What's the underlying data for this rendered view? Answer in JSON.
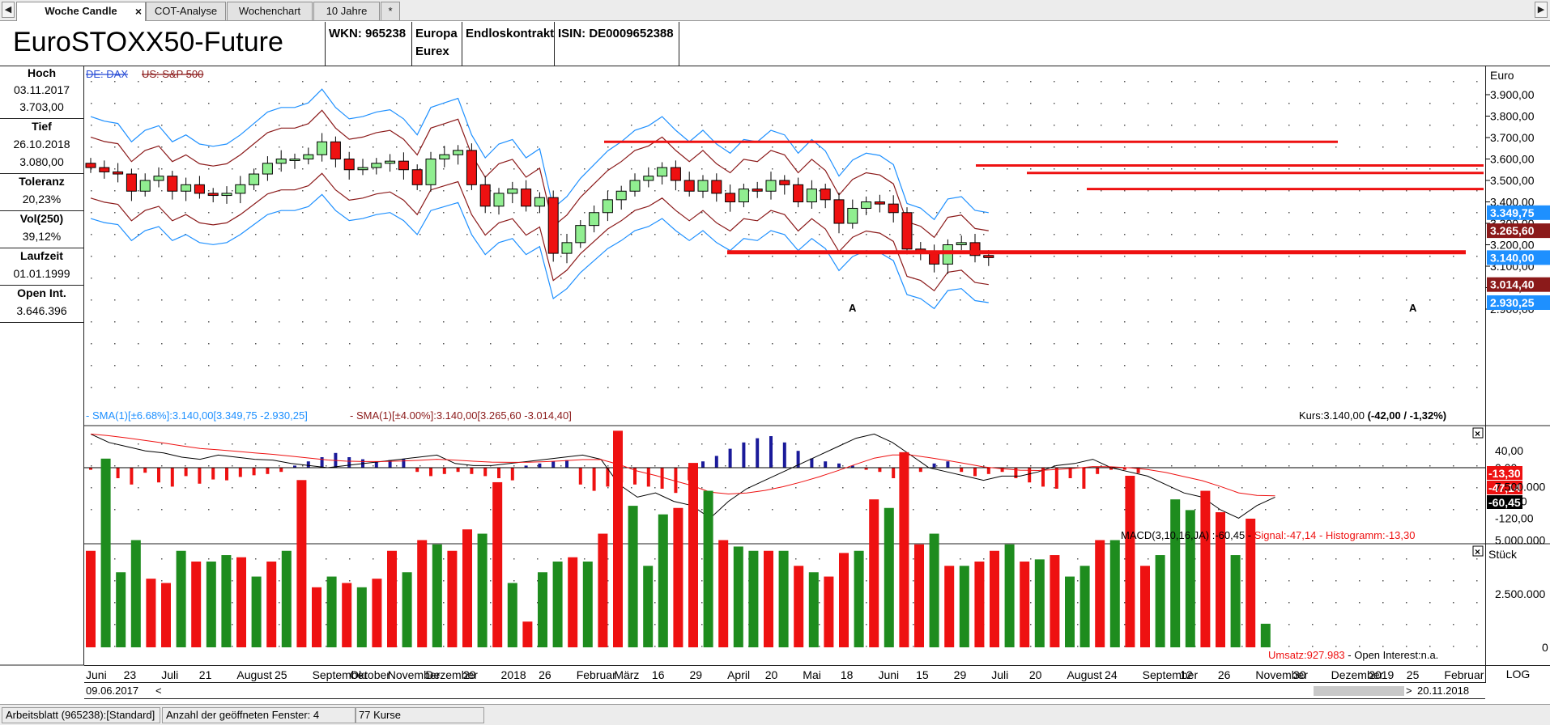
{
  "tabs": [
    {
      "label": "Woche Candle",
      "active": true
    },
    {
      "label": "COT-Analyse"
    },
    {
      "label": "Wochenchart"
    },
    {
      "label": "10 Jahre"
    },
    {
      "label": "*"
    }
  ],
  "nav": {
    "left": "◀",
    "right": "▶"
  },
  "header": {
    "title": "EuroSTOXX50-Future",
    "wkn": "WKN: 965238",
    "region": "Europa",
    "exchange": "Eurex",
    "contract": "Endloskontrakt",
    "isin": "ISIN: DE0009652388"
  },
  "info": {
    "hoch_label": "Hoch",
    "hoch_date": "03.11.2017",
    "hoch_value": "3.703,00",
    "tief_label": "Tief",
    "tief_date": "26.10.2018",
    "tief_value": "3.080,00",
    "toleranz_label": "Toleranz",
    "toleranz_value": "20,23%",
    "vol_label": "Vol(250)",
    "vol_value": "39,12%",
    "laufzeit_label": "Laufzeit",
    "laufzeit_value": "01.01.1999",
    "oi_label": "Open Int.",
    "oi_value": "3.646.396"
  },
  "main_chart": {
    "compare_links": [
      "DE: DAX",
      "US: S&P 500"
    ],
    "currency": "Euro",
    "y_ticks": [
      "3.900,00",
      "3.800,00",
      "3.700,00",
      "3.600,00",
      "3.500,00",
      "3.400,00",
      "3.300,00",
      "3.200,00",
      "3.100,00",
      "3.000,00",
      "2.900,00"
    ],
    "badges": [
      {
        "text": "3.349,75",
        "color": "#1e90ff"
      },
      {
        "text": "3.265,60",
        "color": "#8b1a1a"
      },
      {
        "text": "3.140,00",
        "color": "#1e90ff"
      },
      {
        "text": "3.014,40",
        "color": "#8b1a1a"
      },
      {
        "text": "2.930,25",
        "color": "#1e90ff"
      }
    ],
    "legend_blue": "- SMA(1)[±6.68%]:3.140,00[3.349,75 -2.930,25]",
    "legend_red": "- SMA(1)[±4.00%]:3.140,00[3.265,60 -3.014,40]",
    "kurs_prefix": "Kurs:3.140,00 ",
    "kurs_change": "(-42,00 / -1,32%)",
    "marker_a": "A",
    "colors": {
      "up": "#90ee90",
      "down": "#ee1111",
      "blue_band": "#1e90ff",
      "red_band": "#8b1a1a",
      "line": "#ee1111"
    }
  },
  "macd": {
    "y_ticks": [
      "40,00",
      "0,00",
      "-80,00",
      "-120,00"
    ],
    "badges": [
      {
        "text": "-13,30",
        "color": "#ee1111"
      },
      {
        "text": "-47,14",
        "color": "#ee1111"
      },
      {
        "text": "-60,45",
        "color": "#000000"
      }
    ],
    "legend_main": "MACD(3,10,16,JA) :-60,45 -",
    "legend_signal": " Signal:-47,14 -",
    "legend_hist": " Histogramm:-13,30"
  },
  "volume": {
    "unit": "Stück",
    "y_ticks": [
      "7.500.000",
      "5.000.000",
      "2.500.000",
      "0"
    ],
    "umsatz": "Umsatz:927.983",
    "oi": " - Open Interest:n.a."
  },
  "time_axis": [
    "Juni",
    "23",
    "Juli",
    "21",
    "August",
    "25",
    "September",
    "Oktober",
    "November",
    "Dezember",
    "29",
    "2018",
    "26",
    "Februar",
    "März",
    "16",
    "29",
    "April",
    "20",
    "Mai",
    "18",
    "Juni",
    "15",
    "29",
    "Juli",
    "20",
    "August",
    "24",
    "September",
    "12",
    "26",
    "November",
    "30",
    "Dezember",
    "2019",
    "25",
    "Februar"
  ],
  "range": {
    "start": "09.06.2017",
    "end": "20.11.2018",
    "left_arrow": "<",
    "right_arrow": ">"
  },
  "log_label": "LOG",
  "status": {
    "sheet": "Arbeitsblatt (965238):[Standard]",
    "windows": "Anzahl der geöffneten Fenster: 4",
    "kurse": "77 Kurse"
  },
  "chart_data": {
    "type": "candlestick",
    "title": "EuroSTOXX50-Future",
    "ylabel": "Euro",
    "ylim": [
      2870,
      3960
    ],
    "x_start": "09.06.2017",
    "x_end": "20.11.2018",
    "weekly_close": [
      3560,
      3540,
      3530,
      3450,
      3500,
      3520,
      3450,
      3480,
      3440,
      3430,
      3440,
      3480,
      3530,
      3580,
      3600,
      3600,
      3620,
      3680,
      3600,
      3550,
      3560,
      3580,
      3590,
      3550,
      3480,
      3600,
      3620,
      3640,
      3480,
      3380,
      3440,
      3460,
      3380,
      3420,
      3160,
      3210,
      3290,
      3350,
      3410,
      3450,
      3500,
      3520,
      3560,
      3500,
      3450,
      3500,
      3440,
      3400,
      3460,
      3450,
      3500,
      3480,
      3400,
      3460,
      3410,
      3300,
      3370,
      3400,
      3390,
      3350,
      3180,
      3160,
      3110,
      3200,
      3210,
      3150,
      3140
    ],
    "weekly_volume_mio": [
      4.5,
      8.8,
      3.5,
      5,
      3.2,
      3,
      4.5,
      4,
      4,
      4.3,
      4.2,
      3.3,
      4,
      4.5,
      7.8,
      2.8,
      3.3,
      3,
      2.8,
      3.2,
      4.5,
      3.5,
      5,
      4.8,
      4.5,
      5.5,
      5.3,
      7.7,
      3,
      1.2,
      3.5,
      4,
      4.2,
      4,
      5.3,
      10.1,
      6.6,
      3.8,
      6.2,
      6.5,
      8.6,
      7.3,
      5,
      4.7,
      4.5,
      4.5,
      4.5,
      3.8,
      3.5,
      3.3,
      4.4,
      4.5,
      6.9,
      6.5,
      9.1,
      4.8,
      5.3,
      3.8,
      3.8,
      4,
      4.5,
      4.8,
      4,
      4.1,
      4.3,
      3.3,
      3.8,
      5,
      5,
      8,
      3.8,
      4.3,
      6.9,
      6.4,
      7.3,
      6.3,
      4.3,
      6,
      1.1
    ],
    "macd_hist": [
      -5,
      -18,
      -25,
      -40,
      -12,
      -35,
      -45,
      -20,
      -38,
      -28,
      -30,
      -22,
      -18,
      -15,
      -10,
      5,
      15,
      25,
      35,
      25,
      20,
      15,
      18,
      20,
      -10,
      -20,
      -15,
      -10,
      -15,
      -20,
      -25,
      -30,
      5,
      10,
      15,
      18,
      -40,
      -55,
      -45,
      -35,
      -40,
      -45,
      -50,
      -60,
      -30,
      15,
      28,
      45,
      60,
      70,
      75,
      60,
      40,
      22,
      15,
      10,
      5,
      -5,
      -10,
      -25,
      -15,
      -10,
      10,
      15,
      -10,
      -20,
      -15,
      -10,
      -25,
      -35,
      -45,
      -50,
      -25,
      -50,
      -15,
      -5,
      -5,
      -13
    ],
    "macd_line": [
      80,
      60,
      50,
      40,
      35,
      25,
      20,
      30,
      25,
      20,
      18,
      10,
      5,
      0,
      5,
      10,
      15,
      20,
      25,
      30,
      10,
      5,
      5,
      10,
      15,
      20,
      25,
      30,
      20,
      -40,
      -70,
      -60,
      -80,
      -90,
      -120,
      -80,
      -50,
      -30,
      -10,
      10,
      30,
      50,
      70,
      80,
      60,
      30,
      0,
      -10,
      -20,
      -30,
      -20,
      -20,
      -10,
      5,
      10,
      20,
      0,
      -10,
      -20,
      -40,
      -60,
      -70,
      -100,
      -120,
      -90,
      -70,
      -60,
      -55,
      -60
    ]
  }
}
